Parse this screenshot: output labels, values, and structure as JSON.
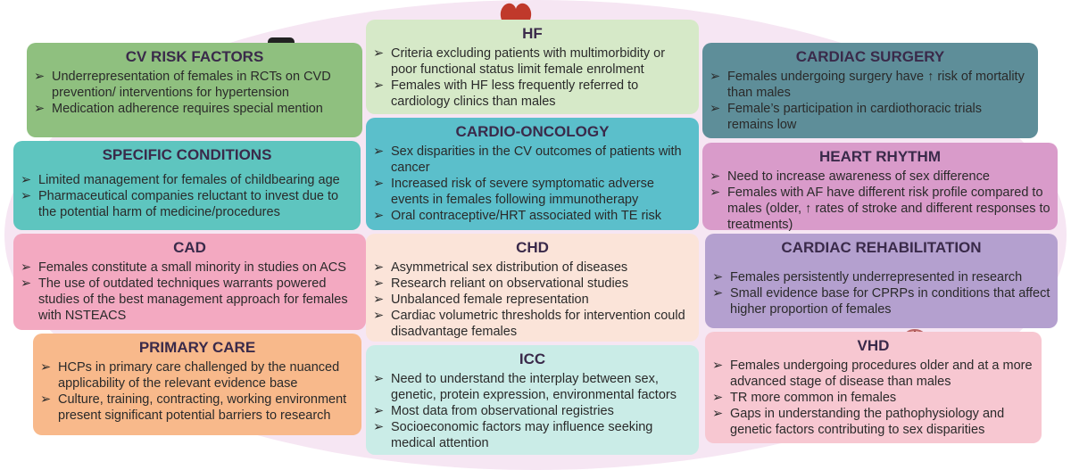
{
  "boxes": [
    {
      "title": "CV RISK FACTORS",
      "items": [
        "Underrepresentation of females in RCTs on CVD prevention/ interventions for hypertension",
        "Medication adherence requires special mention"
      ]
    },
    {
      "title": "SPECIFIC CONDITIONS",
      "items": [
        "Limited management for females of childbearing age",
        "Pharmaceutical companies reluctant to invest due to the potential harm of medicine/procedures"
      ]
    },
    {
      "title": "CAD",
      "items": [
        "Females constitute a small minority in studies on ACS",
        "The use of outdated techniques warrants powered studies of the best management approach for females with NSTEACS"
      ]
    },
    {
      "title": "PRIMARY CARE",
      "items": [
        "HCPs in primary care challenged by the nuanced applicability of the relevant evidence base",
        "Culture, training, contracting, working environment present significant potential barriers to research"
      ]
    },
    {
      "title": "HF",
      "items": [
        "Criteria excluding patients with multimorbidity or poor functional status limit female enrolment",
        "Females with HF less frequently referred to cardiology clinics than males"
      ]
    },
    {
      "title": "CARDIO-ONCOLOGY",
      "items": [
        "Sex disparities in the CV outcomes of patients with cancer",
        "Increased risk of severe symptomatic adverse events in females following immunotherapy",
        "Oral contraceptive/HRT associated with TE risk"
      ]
    },
    {
      "title": "CHD",
      "items": [
        "Asymmetrical sex distribution of diseases",
        "Research reliant on observational studies",
        "Unbalanced female representation",
        "Cardiac volumetric thresholds for intervention could disadvantage females"
      ]
    },
    {
      "title": "ICC",
      "items": [
        "Need to understand the interplay between sex, genetic, protein expression, environmental factors",
        "Most data from observational registries",
        "Socioeconomic factors may influence seeking medical attention"
      ]
    },
    {
      "title": "CARDIAC SURGERY",
      "items": [
        "Females undergoing surgery have ↑ risk of mortality than males",
        "Female’s participation in cardiothoracic trials remains low"
      ]
    },
    {
      "title": "HEART RHYTHM",
      "items": [
        "Need to increase awareness of sex difference",
        "Females with AF have different risk profile compared to males (older, ↑ rates of stroke and different responses to treatments)"
      ]
    },
    {
      "title": "CARDIAC REHABILITATION",
      "items": [
        "Females persistently underrepresented in research",
        "Small evidence base for CPRPs in conditions that affect higher proportion of females"
      ]
    },
    {
      "title": "VHD",
      "items": [
        "Females undergoing procedures older and at a more advanced stage of disease than males",
        "TR more common in females",
        "Gaps in understanding the pathophysiology and genetic factors contributing to sex disparities"
      ]
    }
  ]
}
